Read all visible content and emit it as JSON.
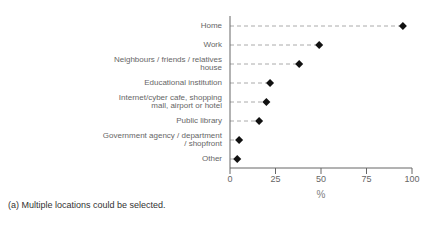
{
  "chart_data": {
    "type": "lollipop",
    "orientation": "horizontal",
    "categories": [
      "Other",
      "Government agency / department / shopfront",
      "Public library",
      "Internet/cyber cafe, shopping mall, airport or hotel",
      "Educational institution",
      "Neighbours / friends / relatives house",
      "Work",
      "Home"
    ],
    "values": [
      4,
      5,
      16,
      20,
      22,
      38,
      49,
      95
    ],
    "color": "#111111",
    "marker": "diamond",
    "line_style": "dashed",
    "xlabel": "%",
    "xlim": [
      0,
      100
    ],
    "xticks": [
      0,
      25,
      50,
      75,
      100
    ],
    "grid": false,
    "annotations": [
      "(a) Multiple locations could be selected."
    ]
  }
}
